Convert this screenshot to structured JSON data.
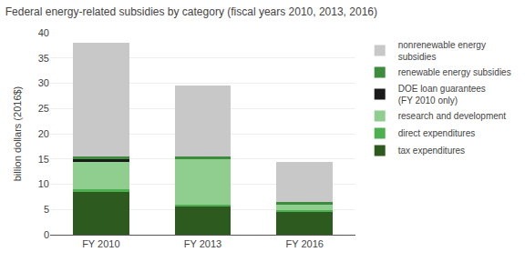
{
  "chart_data": {
    "type": "bar",
    "title": "Federal energy-related subsidies by category (fiscal years 2010, 2013, 2016)",
    "ylabel": "billion dollars (2016$)",
    "categories": [
      "FY 2010",
      "FY 2013",
      "FY 2016"
    ],
    "series": [
      {
        "name": "tax expenditures",
        "color": "#2d5a1e",
        "values": [
          8.5,
          5.5,
          4.5
        ]
      },
      {
        "name": "direct expenditures",
        "color": "#4caf50",
        "values": [
          0.5,
          0.5,
          0.4
        ]
      },
      {
        "name": "research and development",
        "color": "#8fce8f",
        "values": [
          5.5,
          9.0,
          1.0
        ]
      },
      {
        "name": "DOE loan guarantees\n(FY 2010 only)",
        "color": "#1a1a1a",
        "values": [
          0.5,
          0.0,
          0.0
        ]
      },
      {
        "name": "renewable energy subsidies",
        "color": "#3d8b3d",
        "values": [
          0.5,
          0.5,
          0.5
        ]
      },
      {
        "name": "nonrenewable energy\nsubsidies",
        "color": "#c8c8c8",
        "values": [
          22.5,
          14.0,
          8.1
        ]
      }
    ],
    "stacked": true,
    "ylim": [
      0,
      40
    ],
    "yticks": [
      0,
      5,
      10,
      15,
      20,
      25,
      30,
      35,
      40
    ],
    "grid": true,
    "legend": "right"
  }
}
